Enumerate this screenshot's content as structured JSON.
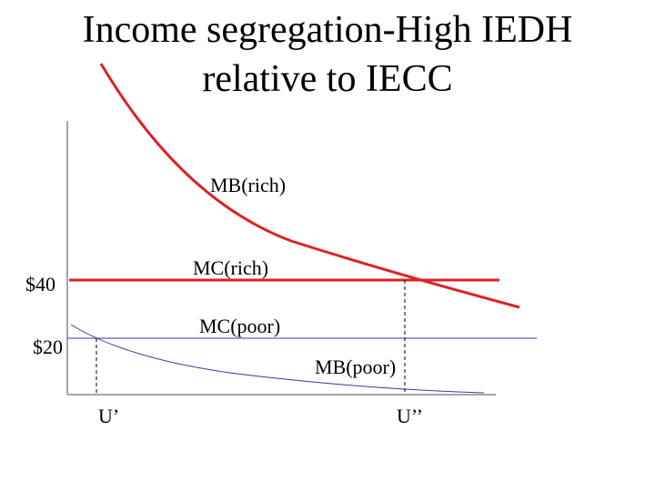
{
  "title": {
    "line1": "Income segregation-High IEDH",
    "line2": "relative to IECC"
  },
  "labels": {
    "mb_rich": "MB(rich)",
    "mc_rich": "MC(rich)",
    "mc_poor": "MC(poor)",
    "mb_poor": "MB(poor)",
    "price_40": "$40",
    "price_20": "$20",
    "u_prime": "U’",
    "u_double_prime": "U’’"
  },
  "colors": {
    "rich_curves": "#dd2222",
    "poor_curves": "#3a3aa0",
    "axes": "#888888",
    "guides": "#000000"
  }
}
